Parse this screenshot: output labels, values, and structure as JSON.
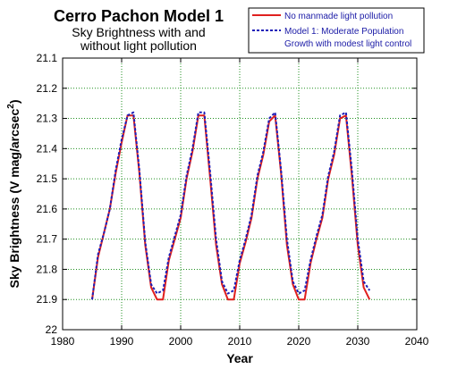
{
  "chart_data": {
    "type": "line",
    "title": "Cerro Pachon Model 1",
    "subtitle_lines": [
      "Sky Brightness with and",
      "without light pollution"
    ],
    "xlabel": "Year",
    "ylabel": "Sky Brightness (V mag/arcsec",
    "ylabel_sup": "2",
    "ylabel_close": ")",
    "xlim": [
      1980,
      2040
    ],
    "ylim": [
      21.1,
      22
    ],
    "y_inverted": true,
    "x_ticks": [
      1980,
      1990,
      2000,
      2010,
      2020,
      2030,
      2040
    ],
    "y_ticks": [
      21.1,
      21.2,
      21.3,
      21.4,
      21.5,
      21.6,
      21.7,
      21.8,
      21.9,
      22
    ],
    "y_tick_labels": [
      "21.1",
      "21.2",
      "21.3",
      "21.4",
      "21.5",
      "21.6",
      "21.7",
      "21.8",
      "21.9",
      "22"
    ],
    "grid": true,
    "legend_position": "top-right",
    "legend": {
      "red_label": "No manmade light pollution",
      "blue_label_line1": "Model 1: Moderate Population",
      "blue_label_line2": "Growth with modest light control"
    },
    "series": [
      {
        "name": "No manmade light pollution",
        "color": "#e0201e",
        "style": "solid",
        "x": [
          1985,
          1986,
          1987,
          1988,
          1989,
          1990,
          1991,
          1992,
          1993,
          1994,
          1995,
          1996,
          1997,
          1998,
          1999,
          2000,
          2001,
          2002,
          2003,
          2004,
          2005,
          2006,
          2007,
          2008,
          2009,
          2010,
          2011,
          2012,
          2013,
          2014,
          2015,
          2016,
          2017,
          2018,
          2019,
          2020,
          2021,
          2022,
          2023,
          2024,
          2025,
          2026,
          2027,
          2028,
          2029,
          2030,
          2031,
          2032
        ],
        "y": [
          21.9,
          21.76,
          21.68,
          21.6,
          21.48,
          21.38,
          21.29,
          21.29,
          21.48,
          21.72,
          21.86,
          21.9,
          21.9,
          21.77,
          21.7,
          21.63,
          21.5,
          21.41,
          21.29,
          21.29,
          21.5,
          21.72,
          21.85,
          21.9,
          21.9,
          21.78,
          21.71,
          21.63,
          21.5,
          21.42,
          21.31,
          21.29,
          21.48,
          21.72,
          21.85,
          21.9,
          21.9,
          21.78,
          21.7,
          21.63,
          21.5,
          21.42,
          21.3,
          21.29,
          21.49,
          21.72,
          21.86,
          21.9
        ]
      },
      {
        "name": "Model 1: Moderate Population Growth with modest light control",
        "color": "#1f1fb8",
        "style": "dashed",
        "x": [
          1985,
          1986,
          1987,
          1988,
          1989,
          1990,
          1991,
          1992,
          1993,
          1994,
          1995,
          1996,
          1997,
          1998,
          1999,
          2000,
          2001,
          2002,
          2003,
          2004,
          2005,
          2006,
          2007,
          2008,
          2009,
          2010,
          2011,
          2012,
          2013,
          2014,
          2015,
          2016,
          2017,
          2018,
          2019,
          2020,
          2021,
          2022,
          2023,
          2024,
          2025,
          2026,
          2027,
          2028,
          2029,
          2030,
          2031,
          2032
        ],
        "y": [
          21.9,
          21.75,
          21.68,
          21.6,
          21.47,
          21.37,
          21.29,
          21.28,
          21.47,
          21.71,
          21.85,
          21.88,
          21.87,
          21.76,
          21.69,
          21.62,
          21.49,
          21.4,
          21.28,
          21.28,
          21.48,
          21.7,
          21.84,
          21.88,
          21.87,
          21.77,
          21.7,
          21.62,
          21.49,
          21.41,
          21.3,
          21.28,
          21.47,
          21.7,
          21.84,
          21.88,
          21.87,
          21.77,
          21.69,
          21.62,
          21.49,
          21.41,
          21.29,
          21.28,
          21.47,
          21.7,
          21.84,
          21.87
        ]
      }
    ]
  }
}
